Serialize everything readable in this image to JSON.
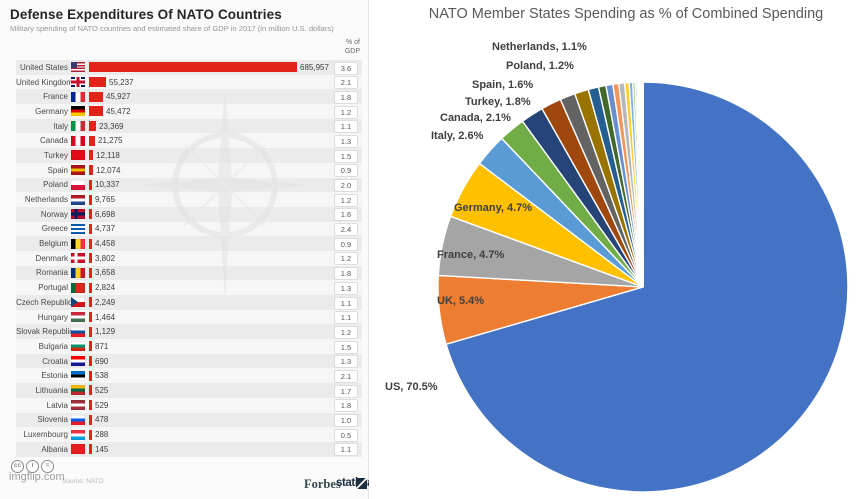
{
  "left_chart": {
    "title": "Defense Expenditures Of NATO Countries",
    "subtitle": "Military spending of NATO countries and estimated share of GDP in 2017 (in million U.S. dollars)",
    "gdp_header": "% of GDP",
    "bar_color": "#e2231a",
    "footer": {
      "cc_icons": [
        "cc",
        "i",
        "="
      ],
      "source": "Source: NATO",
      "watermark": "imgflip.com",
      "forbes": "Forbes",
      "statista": "statista"
    }
  },
  "right_chart": {
    "title": "NATO Member States Spending as % of Combined Spending"
  },
  "chart_data": [
    {
      "id": "defense-expenditure-bar",
      "type": "bar",
      "title": "Defense Expenditures Of NATO Countries",
      "subtitle": "Military spending of NATO countries and estimated share of GDP in 2017 (in million U.S. dollars)",
      "unit": "million U.S. dollars",
      "value_column": "Defense expenditure",
      "extra_column": "% of GDP",
      "bar_color": "#e2231a",
      "rows": [
        {
          "country": "United States",
          "value": 685957,
          "value_label": "685,957",
          "gdp": "3.6",
          "flag": {
            "type": "us"
          }
        },
        {
          "country": "United Kingdom",
          "value": 55237,
          "value_label": "55,237",
          "gdp": "2.1",
          "flag": {
            "type": "uk"
          }
        },
        {
          "country": "France",
          "value": 45927,
          "value_label": "45,927",
          "gdp": "1.8",
          "flag": {
            "type": "v",
            "colors": [
              "#002395",
              "#FFFFFF",
              "#ED2939"
            ]
          }
        },
        {
          "country": "Germany",
          "value": 45472,
          "value_label": "45,472",
          "gdp": "1.2",
          "flag": {
            "type": "h",
            "colors": [
              "#000000",
              "#DD0000",
              "#FFCE00"
            ]
          }
        },
        {
          "country": "Italy",
          "value": 23369,
          "value_label": "23,369",
          "gdp": "1.1",
          "flag": {
            "type": "v",
            "colors": [
              "#009246",
              "#FFFFFF",
              "#CE2B37"
            ]
          }
        },
        {
          "country": "Canada",
          "value": 21275,
          "value_label": "21,275",
          "gdp": "1.3",
          "flag": {
            "type": "v",
            "colors": [
              "#D80621",
              "#FFFFFF",
              "#D80621"
            ]
          }
        },
        {
          "country": "Turkey",
          "value": 12118,
          "value_label": "12,118",
          "gdp": "1.5",
          "flag": {
            "type": "s",
            "colors": [
              "#E30A17"
            ]
          }
        },
        {
          "country": "Spain",
          "value": 12074,
          "value_label": "12,074",
          "gdp": "0.9",
          "flag": {
            "type": "h",
            "colors": [
              "#AA151B",
              "#F1BF00",
              "#AA151B"
            ]
          }
        },
        {
          "country": "Poland",
          "value": 10337,
          "value_label": "10,337",
          "gdp": "2.0",
          "flag": {
            "type": "h",
            "colors": [
              "#FFFFFF",
              "#DC143C"
            ]
          }
        },
        {
          "country": "Netherlands",
          "value": 9765,
          "value_label": "9,765",
          "gdp": "1.2",
          "flag": {
            "type": "h",
            "colors": [
              "#AE1C28",
              "#FFFFFF",
              "#21468B"
            ]
          }
        },
        {
          "country": "Norway",
          "value": 6698,
          "value_label": "6,698",
          "gdp": "1.6",
          "flag": {
            "type": "cross",
            "bg": "#BA0C2F",
            "cross": "#00205B"
          }
        },
        {
          "country": "Greece",
          "value": 4737,
          "value_label": "4,737",
          "gdp": "2.4",
          "flag": {
            "type": "h",
            "colors": [
              "#0D5EAF",
              "#FFFFFF",
              "#0D5EAF",
              "#FFFFFF",
              "#0D5EAF"
            ]
          }
        },
        {
          "country": "Belgium",
          "value": 4458,
          "value_label": "4,458",
          "gdp": "0.9",
          "flag": {
            "type": "v",
            "colors": [
              "#000000",
              "#FDDA24",
              "#EF3340"
            ]
          }
        },
        {
          "country": "Denmark",
          "value": 3802,
          "value_label": "3,802",
          "gdp": "1.2",
          "flag": {
            "type": "cross",
            "bg": "#C8102E",
            "cross": "#FFFFFF"
          }
        },
        {
          "country": "Romania",
          "value": 3658,
          "value_label": "3,658",
          "gdp": "1.8",
          "flag": {
            "type": "v",
            "colors": [
              "#002B7F",
              "#FCD116",
              "#CE1126"
            ]
          }
        },
        {
          "country": "Portugal",
          "value": 2824,
          "value_label": "2,824",
          "gdp": "1.3",
          "flag": {
            "type": "v",
            "colors": [
              "#046A38",
              "#DA291C",
              "#DA291C"
            ]
          }
        },
        {
          "country": "Czech Republic",
          "value": 2249,
          "value_label": "2,249",
          "gdp": "1.1",
          "flag": {
            "type": "h",
            "colors": [
              "#FFFFFF",
              "#D7141A"
            ],
            "tri": "#11457E"
          }
        },
        {
          "country": "Hungary",
          "value": 1464,
          "value_label": "1,464",
          "gdp": "1.1",
          "flag": {
            "type": "h",
            "colors": [
              "#CE2939",
              "#FFFFFF",
              "#477050"
            ]
          }
        },
        {
          "country": "Slovak Republic",
          "value": 1129,
          "value_label": "1,129",
          "gdp": "1.2",
          "flag": {
            "type": "h",
            "colors": [
              "#FFFFFF",
              "#0B4EA2",
              "#EE1C25"
            ]
          }
        },
        {
          "country": "Bulgaria",
          "value": 871,
          "value_label": "871",
          "gdp": "1.5",
          "flag": {
            "type": "h",
            "colors": [
              "#FFFFFF",
              "#00966E",
              "#D62612"
            ]
          }
        },
        {
          "country": "Croatia",
          "value": 690,
          "value_label": "690",
          "gdp": "1.3",
          "flag": {
            "type": "h",
            "colors": [
              "#FF0000",
              "#FFFFFF",
              "#171796"
            ]
          }
        },
        {
          "country": "Estonia",
          "value": 538,
          "value_label": "538",
          "gdp": "2.1",
          "flag": {
            "type": "h",
            "colors": [
              "#0072CE",
              "#000000",
              "#FFFFFF"
            ]
          }
        },
        {
          "country": "Lithuania",
          "value": 525,
          "value_label": "525",
          "gdp": "1.7",
          "flag": {
            "type": "h",
            "colors": [
              "#FDB913",
              "#006A44",
              "#C1272D"
            ]
          }
        },
        {
          "country": "Latvia",
          "value": 529,
          "value_label": "529",
          "gdp": "1.8",
          "flag": {
            "type": "h",
            "colors": [
              "#9E3039",
              "#FFFFFF",
              "#9E3039"
            ]
          }
        },
        {
          "country": "Slovenia",
          "value": 478,
          "value_label": "478",
          "gdp": "1.0",
          "flag": {
            "type": "h",
            "colors": [
              "#FFFFFF",
              "#005CE5",
              "#ED1C24"
            ]
          }
        },
        {
          "country": "Luxembourg",
          "value": 288,
          "value_label": "288",
          "gdp": "0.5",
          "flag": {
            "type": "h",
            "colors": [
              "#EF3340",
              "#FFFFFF",
              "#00A3E0"
            ]
          }
        },
        {
          "country": "Albania",
          "value": 145,
          "value_label": "145",
          "gdp": "1.1",
          "flag": {
            "type": "s",
            "colors": [
              "#E41E20"
            ]
          }
        }
      ]
    },
    {
      "id": "combined-spending-pie",
      "type": "pie",
      "title": "NATO Member States Spending as % of Combined Spending",
      "slices": [
        {
          "name": "US",
          "pct": 70.5,
          "label": "US, 70.5%",
          "color": "#4472C4"
        },
        {
          "name": "UK",
          "pct": 5.4,
          "label": "UK, 5.4%",
          "color": "#ED7D31"
        },
        {
          "name": "France",
          "pct": 4.7,
          "label": "France, 4.7%",
          "color": "#A5A5A5"
        },
        {
          "name": "Germany",
          "pct": 4.7,
          "label": "Germany, 4.7%",
          "color": "#FFC000"
        },
        {
          "name": "Italy",
          "pct": 2.6,
          "label": "Italy, 2.6%",
          "color": "#5B9BD5"
        },
        {
          "name": "Canada",
          "pct": 2.1,
          "label": "Canada, 2.1%",
          "color": "#70AD47"
        },
        {
          "name": "Turkey",
          "pct": 1.8,
          "label": "Turkey, 1.8%",
          "color": "#264478"
        },
        {
          "name": "Spain",
          "pct": 1.6,
          "label": "Spain, 1.6%",
          "color": "#9E480E"
        },
        {
          "name": "Poland",
          "pct": 1.2,
          "label": "Poland, 1.2%",
          "color": "#636363"
        },
        {
          "name": "Netherlands",
          "pct": 1.1,
          "label": "Netherlands, 1.1%",
          "color": "#997300"
        },
        {
          "name": "Norway",
          "pct": 0.82,
          "label": null,
          "color": "#255E91"
        },
        {
          "name": "Greece",
          "pct": 0.58,
          "label": null,
          "color": "#43682B"
        },
        {
          "name": "Belgium",
          "pct": 0.55,
          "label": null,
          "color": "#698ED0"
        },
        {
          "name": "Denmark",
          "pct": 0.47,
          "label": null,
          "color": "#F1975A"
        },
        {
          "name": "Romania",
          "pct": 0.45,
          "label": null,
          "color": "#B7B7B7"
        },
        {
          "name": "Portugal",
          "pct": 0.35,
          "label": null,
          "color": "#FFCD33"
        },
        {
          "name": "Czech Republic",
          "pct": 0.28,
          "label": null,
          "color": "#7CAFDD"
        },
        {
          "name": "Hungary",
          "pct": 0.18,
          "label": null,
          "color": "#8CC168"
        },
        {
          "name": "Slovak Republic",
          "pct": 0.14,
          "label": null,
          "color": "#9DC3E6"
        },
        {
          "name": "Bulgaria",
          "pct": 0.11,
          "label": null,
          "color": "#F4B183"
        },
        {
          "name": "Croatia",
          "pct": 0.08,
          "label": null,
          "color": "#D9D9D9"
        },
        {
          "name": "Estonia",
          "pct": 0.07,
          "label": null,
          "color": "#FFE699"
        },
        {
          "name": "Lithuania",
          "pct": 0.06,
          "label": null,
          "color": "#BDD7EE"
        },
        {
          "name": "Latvia",
          "pct": 0.06,
          "label": null,
          "color": "#C5E0B4"
        },
        {
          "name": "Slovenia",
          "pct": 0.06,
          "label": null,
          "color": "#E2EFDA"
        },
        {
          "name": "Luxembourg",
          "pct": 0.04,
          "label": null,
          "color": "#DDEBF7"
        },
        {
          "name": "Albania",
          "pct": 0.02,
          "label": null,
          "color": "#FFF2CC"
        }
      ]
    }
  ]
}
